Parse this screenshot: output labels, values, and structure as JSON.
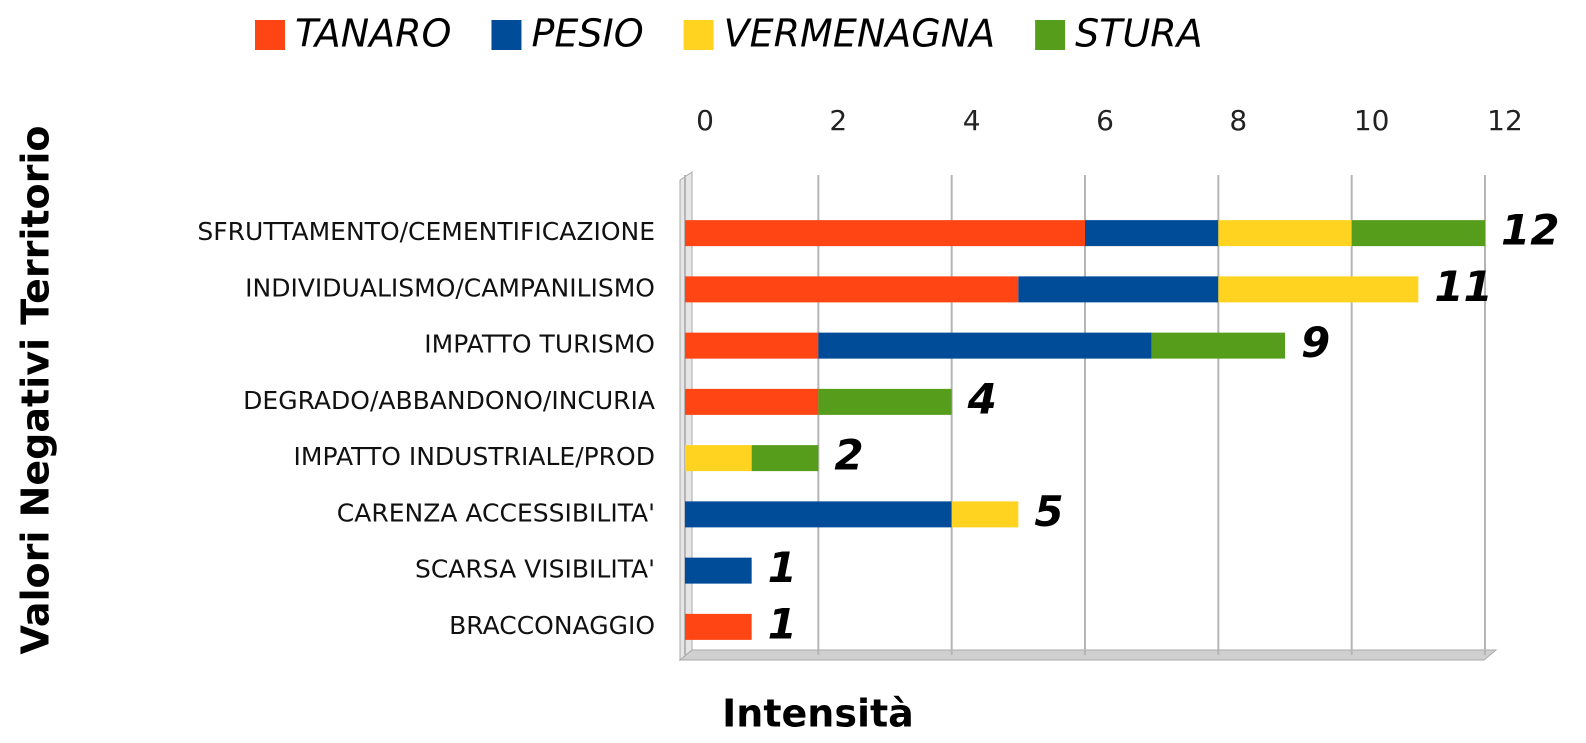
{
  "chart_data": {
    "type": "stacked_bar_horizontal",
    "x_label": "Intensità",
    "y_label": "Valori Negativi Territorio",
    "categories": [
      "SFRUTTAMENTO/CEMENTIFICAZIONE",
      "INDIVIDUALISMO/CAMPANILISMO",
      "IMPATTO TURISMO",
      "DEGRADO/ABBANDONO/INCURIA",
      "IMPATTO INDUSTRIALE/PROD",
      "CARENZA ACCESSIBILITA'",
      "SCARSA VISIBILITA'",
      "BRACCONAGGIO"
    ],
    "series": [
      {
        "name": "TANARO",
        "color": "#ff4514",
        "values": [
          6,
          5,
          2,
          2,
          0,
          0,
          0,
          1
        ]
      },
      {
        "name": "PESIO",
        "color": "#004c99",
        "values": [
          2,
          3,
          5,
          0,
          0,
          4,
          1,
          0
        ]
      },
      {
        "name": "VERMENAGNA",
        "color": "#ffd320",
        "values": [
          2,
          3,
          0,
          0,
          1,
          1,
          0,
          0
        ]
      },
      {
        "name": "STURA",
        "color": "#579d1c",
        "values": [
          2,
          0,
          2,
          2,
          1,
          0,
          0,
          0
        ]
      }
    ],
    "totals": [
      12,
      11,
      9,
      4,
      2,
      5,
      1,
      1
    ],
    "xlim": [
      0,
      12
    ],
    "xticks": [
      0,
      2,
      4,
      6,
      8,
      10,
      12
    ],
    "grid": true,
    "legend": "top"
  }
}
